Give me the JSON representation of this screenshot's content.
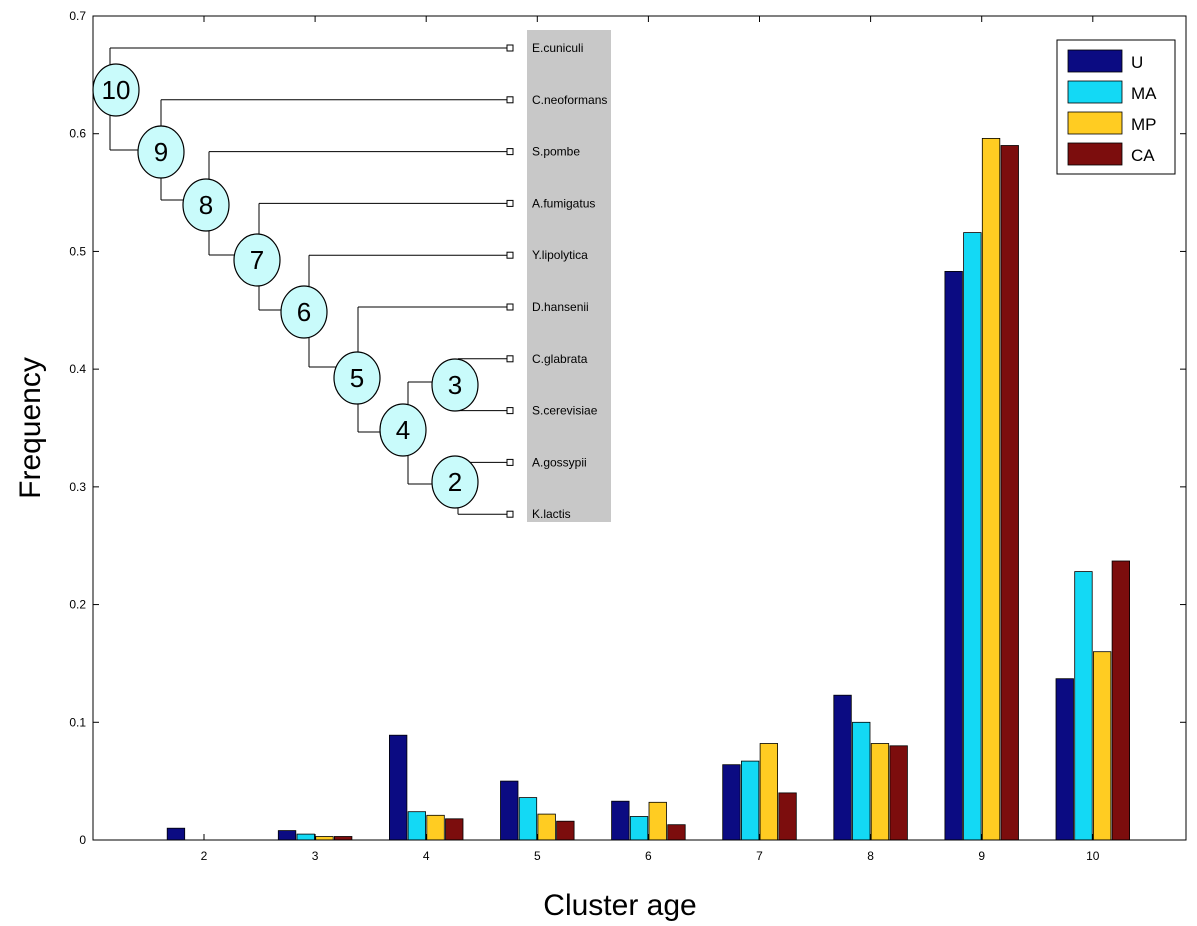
{
  "chart_data": {
    "type": "bar",
    "xlabel": "Cluster age",
    "ylabel": "Frequency",
    "ylim": [
      0,
      0.7
    ],
    "yticks": [
      "0",
      "0.1",
      "0.2",
      "0.3",
      "0.4",
      "0.5",
      "0.6",
      "0.7"
    ],
    "categories": [
      "2",
      "3",
      "4",
      "5",
      "6",
      "7",
      "8",
      "9",
      "10"
    ],
    "legend_position": "top-right",
    "grid": false,
    "series": [
      {
        "name": "U",
        "color": "#0b0b82",
        "values": [
          0.01,
          0.008,
          0.089,
          0.05,
          0.033,
          0.064,
          0.123,
          0.483,
          0.137
        ]
      },
      {
        "name": "MA",
        "color": "#13d9f5",
        "values": [
          0.0,
          0.005,
          0.024,
          0.036,
          0.02,
          0.067,
          0.1,
          0.516,
          0.228
        ]
      },
      {
        "name": "MP",
        "color": "#ffcc22",
        "values": [
          0.0,
          0.003,
          0.021,
          0.022,
          0.032,
          0.082,
          0.082,
          0.596,
          0.16
        ]
      },
      {
        "name": "CA",
        "color": "#7c0d0d",
        "values": [
          0.0,
          0.003,
          0.018,
          0.016,
          0.013,
          0.04,
          0.08,
          0.59,
          0.237
        ]
      }
    ],
    "tree": {
      "species": [
        "E.cuniculi",
        "C.neoformans",
        "S.pombe",
        "A.fumigatus",
        "Y.lipolytica",
        "D.hansenii",
        "C.glabrata",
        "S.cerevisiae",
        "A.gossypii",
        "K.lactis"
      ],
      "node_labels": [
        "10",
        "9",
        "8",
        "7",
        "6",
        "5",
        "4",
        "3",
        "2"
      ],
      "node_color": "#c9fbfb",
      "panel_color": "#c8c8c8"
    }
  }
}
